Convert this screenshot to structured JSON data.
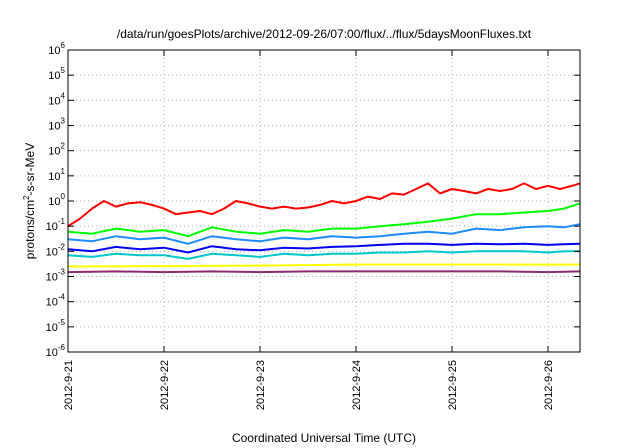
{
  "chart_data": {
    "type": "line",
    "title": "/data/run/goesPlots/archive/2012-09-26/07:00/flux/../flux/5daysMoonFluxes.txt",
    "xlabel": "Coordinated Universal Time (UTC)",
    "ylabel": {
      "parts": [
        "protons/cm",
        "2",
        "-s-sr-MeV"
      ]
    },
    "y_scale": "log",
    "ylim": [
      1e-06,
      1000000.0
    ],
    "y_ticks": [
      {
        "base": "10",
        "exp": "-6",
        "value": -6
      },
      {
        "base": "10",
        "exp": "-5",
        "value": -5
      },
      {
        "base": "10",
        "exp": "-4",
        "value": -4
      },
      {
        "base": "10",
        "exp": "-3",
        "value": -3
      },
      {
        "base": "10",
        "exp": "-2",
        "value": -2
      },
      {
        "base": "10",
        "exp": "-1",
        "value": -1
      },
      {
        "base": "10",
        "exp": "0",
        "value": 0
      },
      {
        "base": "10",
        "exp": "1",
        "value": 1
      },
      {
        "base": "10",
        "exp": "2",
        "value": 2
      },
      {
        "base": "10",
        "exp": "3",
        "value": 3
      },
      {
        "base": "10",
        "exp": "4",
        "value": 4
      },
      {
        "base": "10",
        "exp": "5",
        "value": 5
      },
      {
        "base": "10",
        "exp": "6",
        "value": 6
      }
    ],
    "xlim": [
      "2012-09-21 00:00",
      "2012-09-26 08:00"
    ],
    "x_ticks": [
      "2012-9-21",
      "2012-9-22",
      "2012-9-23",
      "2012-9-24",
      "2012-9-25",
      "2012-9-26"
    ],
    "grid": true,
    "series": [
      {
        "color": "#ff0000",
        "x": [
          "2012-09-21 00:00",
          "2012-09-21 03:00",
          "2012-09-21 06:00",
          "2012-09-21 09:00",
          "2012-09-21 12:00",
          "2012-09-21 15:00",
          "2012-09-21 18:00",
          "2012-09-21 21:00",
          "2012-09-22 00:00",
          "2012-09-22 03:00",
          "2012-09-22 06:00",
          "2012-09-22 09:00",
          "2012-09-22 12:00",
          "2012-09-22 15:00",
          "2012-09-22 18:00",
          "2012-09-22 21:00",
          "2012-09-23 00:00",
          "2012-09-23 03:00",
          "2012-09-23 06:00",
          "2012-09-23 09:00",
          "2012-09-23 12:00",
          "2012-09-23 15:00",
          "2012-09-23 18:00",
          "2012-09-23 21:00",
          "2012-09-24 00:00",
          "2012-09-24 03:00",
          "2012-09-24 06:00",
          "2012-09-24 09:00",
          "2012-09-24 12:00",
          "2012-09-24 15:00",
          "2012-09-24 18:00",
          "2012-09-24 21:00",
          "2012-09-25 00:00",
          "2012-09-25 03:00",
          "2012-09-25 06:00",
          "2012-09-25 09:00",
          "2012-09-25 12:00",
          "2012-09-25 15:00",
          "2012-09-25 18:00",
          "2012-09-25 21:00",
          "2012-09-26 00:00",
          "2012-09-26 03:00",
          "2012-09-26 06:00",
          "2012-09-26 08:00"
        ],
        "y": [
          0.1,
          0.2,
          0.5,
          1.0,
          0.6,
          0.8,
          0.9,
          0.7,
          0.5,
          0.3,
          0.35,
          0.4,
          0.3,
          0.5,
          1.0,
          0.8,
          0.6,
          0.5,
          0.6,
          0.5,
          0.55,
          0.7,
          1.0,
          0.8,
          1.0,
          1.5,
          1.2,
          2.0,
          1.8,
          3.0,
          5.0,
          2.0,
          3.0,
          2.5,
          2.0,
          3.0,
          2.5,
          3.0,
          5.0,
          3.0,
          4.0,
          3.0,
          4.0,
          5.0
        ]
      },
      {
        "color": "#00ff00",
        "x": [
          "2012-09-21 00:00",
          "2012-09-21 06:00",
          "2012-09-21 12:00",
          "2012-09-21 18:00",
          "2012-09-22 00:00",
          "2012-09-22 06:00",
          "2012-09-22 12:00",
          "2012-09-22 18:00",
          "2012-09-23 00:00",
          "2012-09-23 06:00",
          "2012-09-23 12:00",
          "2012-09-23 18:00",
          "2012-09-24 00:00",
          "2012-09-24 06:00",
          "2012-09-24 12:00",
          "2012-09-24 18:00",
          "2012-09-25 00:00",
          "2012-09-25 06:00",
          "2012-09-25 12:00",
          "2012-09-25 18:00",
          "2012-09-26 00:00",
          "2012-09-26 04:00",
          "2012-09-26 08:00"
        ],
        "y": [
          0.06,
          0.05,
          0.08,
          0.06,
          0.07,
          0.04,
          0.09,
          0.06,
          0.05,
          0.07,
          0.06,
          0.08,
          0.08,
          0.1,
          0.12,
          0.15,
          0.2,
          0.3,
          0.3,
          0.35,
          0.4,
          0.5,
          0.8
        ]
      },
      {
        "color": "#1e8cff",
        "x": [
          "2012-09-21 00:00",
          "2012-09-21 06:00",
          "2012-09-21 12:00",
          "2012-09-21 18:00",
          "2012-09-22 00:00",
          "2012-09-22 06:00",
          "2012-09-22 12:00",
          "2012-09-22 18:00",
          "2012-09-23 00:00",
          "2012-09-23 06:00",
          "2012-09-23 12:00",
          "2012-09-23 18:00",
          "2012-09-24 00:00",
          "2012-09-24 06:00",
          "2012-09-24 12:00",
          "2012-09-24 18:00",
          "2012-09-25 00:00",
          "2012-09-25 06:00",
          "2012-09-25 12:00",
          "2012-09-25 18:00",
          "2012-09-26 00:00",
          "2012-09-26 04:00",
          "2012-09-26 08:00"
        ],
        "y": [
          0.03,
          0.025,
          0.04,
          0.03,
          0.035,
          0.02,
          0.04,
          0.03,
          0.025,
          0.035,
          0.03,
          0.04,
          0.035,
          0.04,
          0.05,
          0.06,
          0.05,
          0.08,
          0.07,
          0.09,
          0.1,
          0.09,
          0.12
        ]
      },
      {
        "color": "#0000ee",
        "x": [
          "2012-09-21 00:00",
          "2012-09-21 06:00",
          "2012-09-21 12:00",
          "2012-09-21 18:00",
          "2012-09-22 00:00",
          "2012-09-22 06:00",
          "2012-09-22 12:00",
          "2012-09-22 18:00",
          "2012-09-23 00:00",
          "2012-09-23 06:00",
          "2012-09-23 12:00",
          "2012-09-23 18:00",
          "2012-09-24 00:00",
          "2012-09-24 06:00",
          "2012-09-24 12:00",
          "2012-09-24 18:00",
          "2012-09-25 00:00",
          "2012-09-25 06:00",
          "2012-09-25 12:00",
          "2012-09-25 18:00",
          "2012-09-26 00:00",
          "2012-09-26 04:00",
          "2012-09-26 08:00"
        ],
        "y": [
          0.012,
          0.01,
          0.015,
          0.012,
          0.014,
          0.009,
          0.016,
          0.012,
          0.011,
          0.014,
          0.013,
          0.015,
          0.016,
          0.018,
          0.02,
          0.02,
          0.018,
          0.02,
          0.019,
          0.02,
          0.018,
          0.019,
          0.02
        ]
      },
      {
        "color": "#00c8c8",
        "x": [
          "2012-09-21 00:00",
          "2012-09-21 06:00",
          "2012-09-21 12:00",
          "2012-09-21 18:00",
          "2012-09-22 00:00",
          "2012-09-22 06:00",
          "2012-09-22 12:00",
          "2012-09-22 18:00",
          "2012-09-23 00:00",
          "2012-09-23 06:00",
          "2012-09-23 12:00",
          "2012-09-23 18:00",
          "2012-09-24 00:00",
          "2012-09-24 06:00",
          "2012-09-24 12:00",
          "2012-09-24 18:00",
          "2012-09-25 00:00",
          "2012-09-25 06:00",
          "2012-09-25 12:00",
          "2012-09-25 18:00",
          "2012-09-26 00:00",
          "2012-09-26 04:00",
          "2012-09-26 08:00"
        ],
        "y": [
          0.007,
          0.006,
          0.008,
          0.007,
          0.007,
          0.005,
          0.008,
          0.007,
          0.006,
          0.008,
          0.007,
          0.008,
          0.008,
          0.009,
          0.009,
          0.01,
          0.009,
          0.01,
          0.01,
          0.01,
          0.009,
          0.01,
          0.01
        ]
      },
      {
        "color": "#ffff00",
        "x": [
          "2012-09-21 00:00",
          "2012-09-22 00:00",
          "2012-09-23 00:00",
          "2012-09-24 00:00",
          "2012-09-25 00:00",
          "2012-09-26 00:00",
          "2012-09-26 08:00"
        ],
        "y": [
          0.0025,
          0.0026,
          0.0027,
          0.003,
          0.003,
          0.003,
          0.003
        ]
      },
      {
        "color": "#8b2a6e",
        "x": [
          "2012-09-21 00:00",
          "2012-09-21 12:00",
          "2012-09-22 00:00",
          "2012-09-22 12:00",
          "2012-09-23 00:00",
          "2012-09-23 12:00",
          "2012-09-24 00:00",
          "2012-09-24 12:00",
          "2012-09-25 00:00",
          "2012-09-25 12:00",
          "2012-09-26 00:00",
          "2012-09-26 08:00"
        ],
        "y": [
          0.0015,
          0.0016,
          0.0015,
          0.0016,
          0.0015,
          0.0016,
          0.0016,
          0.0016,
          0.0016,
          0.0016,
          0.0015,
          0.0016
        ]
      }
    ]
  }
}
